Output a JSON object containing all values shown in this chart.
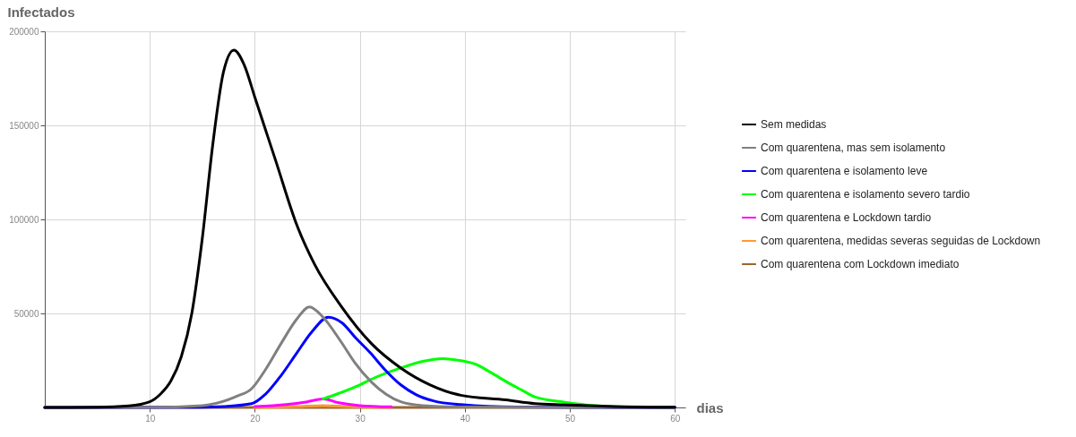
{
  "chart_data": {
    "type": "line",
    "xlabel": "dias",
    "ylabel": "Infectados",
    "xlim": [
      0,
      61
    ],
    "xticks": [
      10,
      20,
      30,
      40,
      50,
      60
    ],
    "ylim": [
      0,
      200000
    ],
    "yticks": [
      50000,
      100000,
      150000,
      200000
    ],
    "grid": true,
    "legend": "right",
    "line_style": "solid",
    "series": [
      {
        "name": "Sem medidas",
        "color": "#000000",
        "x": [
          0,
          5,
          8,
          10,
          11,
          12,
          13,
          14,
          15,
          16,
          17,
          18,
          19,
          20,
          21,
          22,
          24,
          25.7,
          28.2,
          31.1,
          33.9,
          36.7,
          39.6,
          43.9,
          46.7,
          49.5,
          55,
          60
        ],
        "values": [
          0,
          100,
          800,
          3000,
          7000,
          14000,
          27000,
          50000,
          90000,
          140000,
          178000,
          190000,
          182000,
          165000,
          148000,
          131000,
          97000,
          76000,
          54000,
          34000,
          21000,
          12000,
          6500,
          4000,
          2000,
          1400,
          400,
          100
        ]
      },
      {
        "name": "Com quarentena, mas sem isolamento",
        "color": "#808080",
        "x": [
          0,
          10,
          15,
          18.3,
          19.7,
          21,
          22.5,
          24,
          25.2,
          26.5,
          28.2,
          29.5,
          31.1,
          32.5,
          33.9,
          36,
          40,
          50,
          60
        ],
        "values": [
          0,
          0,
          1000,
          6000,
          10000,
          20000,
          34000,
          47000,
          53500,
          48000,
          35000,
          24000,
          13500,
          7000,
          3000,
          1000,
          200,
          0,
          0
        ]
      },
      {
        "name": "Com quarentena e isolamento leve",
        "color": "#0000ff",
        "x": [
          0,
          15,
          17,
          19.7,
          21,
          22.5,
          24,
          25.4,
          27,
          28.3,
          29.6,
          31,
          32.4,
          33.9,
          35.3,
          37,
          39.6,
          45,
          60
        ],
        "values": [
          0,
          100,
          500,
          2000,
          7000,
          17000,
          29000,
          40000,
          48000,
          45000,
          37000,
          29000,
          20000,
          12000,
          7000,
          3500,
          1500,
          200,
          0
        ]
      },
      {
        "name": "Com quarentena e isolamento severo tardio",
        "color": "#00ff00",
        "x": [
          26.5,
          28,
          30,
          31.1,
          33.9,
          36,
          37.9,
          39.5,
          41,
          42.5,
          44,
          45.5,
          46.7,
          49.5,
          52.4,
          56,
          60
        ],
        "values": [
          4500,
          7500,
          12000,
          15000,
          21000,
          24500,
          26000,
          25000,
          23000,
          18500,
          13500,
          9000,
          5500,
          2800,
          1000,
          300,
          100
        ]
      },
      {
        "name": "Com quarentena e Lockdown tardio",
        "color": "#ff00ff",
        "x": [
          20,
          23,
          25,
          26.5,
          28,
          30,
          33
        ],
        "values": [
          500,
          1500,
          3000,
          4500,
          2500,
          1000,
          300
        ]
      },
      {
        "name": "Com quarentena, medidas severas seguidas de Lockdown",
        "color": "#ff9933",
        "x": [
          20,
          24,
          26.5,
          29,
          33
        ],
        "values": [
          0,
          500,
          1000,
          500,
          0
        ]
      },
      {
        "name": "Com quarentena com Lockdown imediato",
        "color": "#996633",
        "x": [
          0,
          10,
          40,
          50,
          60
        ],
        "values": [
          0,
          0,
          0,
          0,
          0
        ]
      }
    ]
  }
}
